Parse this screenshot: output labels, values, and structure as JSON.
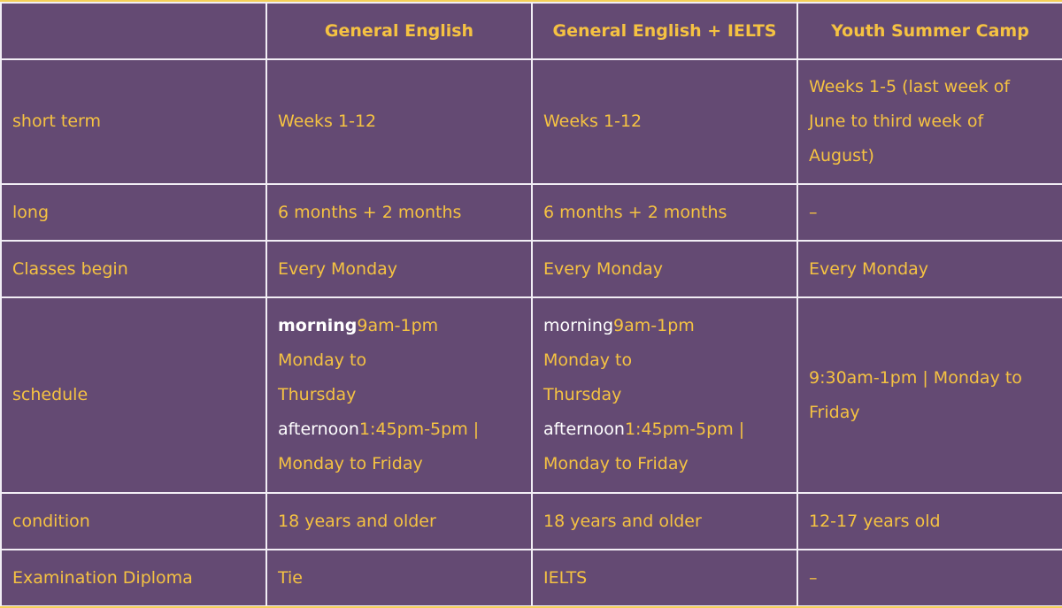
{
  "columns": [
    "",
    "General English",
    "General English + IELTS",
    "Youth Summer Camp"
  ],
  "rows": [
    {
      "label": "short term",
      "cells": [
        "Weeks 1-12",
        "Weeks 1-12",
        "Weeks 1-5 (last week of June to third week of August)"
      ]
    },
    {
      "label": "long",
      "cells": [
        "6 months + 2 months",
        "6 months + 2 months",
        "–"
      ]
    },
    {
      "label": "Classes begin",
      "cells": [
        "Every Monday",
        "Every Monday",
        "Every Monday"
      ]
    },
    {
      "label": "schedule",
      "ge": {
        "morning_label": "morning",
        "morning_time": "9am-1pm",
        "morning_days": "Monday to Thursday",
        "afternoon_label": "afternoon",
        "afternoon_time": "1:45pm-5pm |",
        "afternoon_days": "Monday to Friday"
      },
      "ielts": {
        "morning_label": "morning",
        "morning_time": "9am-1pm",
        "morning_days": "Monday to Thursday",
        "afternoon_label": "afternoon",
        "afternoon_time": "1:45pm-5pm |",
        "afternoon_days": "Monday to Friday"
      },
      "camp": "9:30am-1pm | Monday to Friday"
    },
    {
      "label": "condition",
      "cells": [
        "18 years and older",
        "18 years and older",
        "12-17 years old"
      ]
    },
    {
      "label": "Examination Diploma",
      "cells": [
        "Tie",
        "IELTS",
        "–"
      ]
    }
  ],
  "colors": {
    "background": "#644a73",
    "text": "#f5c242",
    "border": "#f2eef5"
  }
}
